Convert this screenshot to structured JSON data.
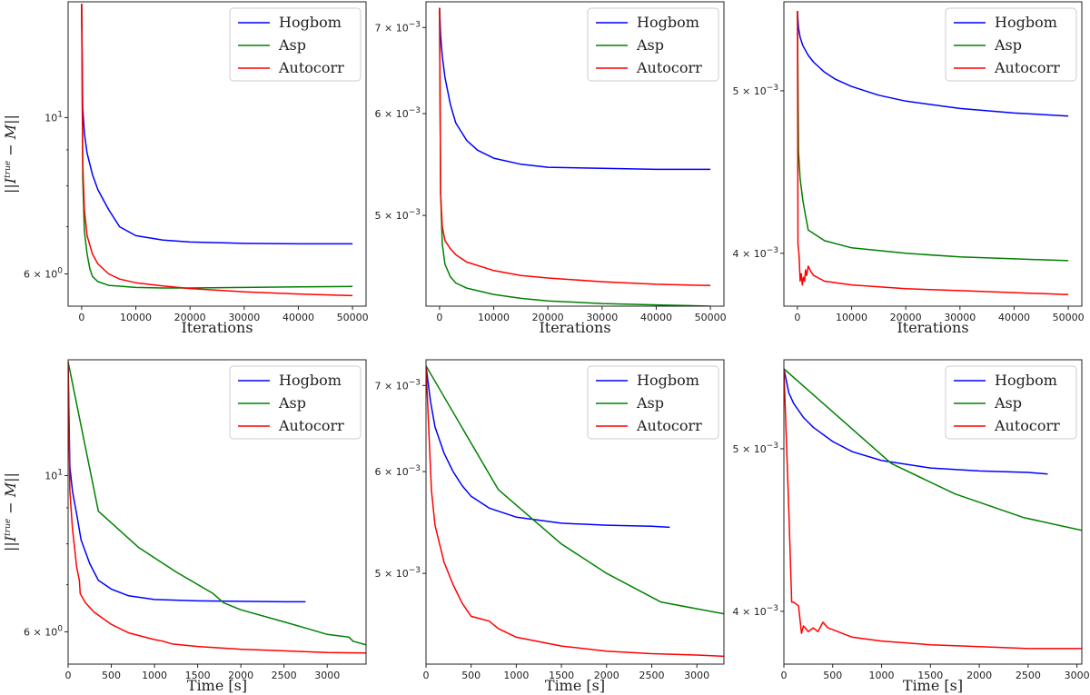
{
  "colors": {
    "Hogbom": "#0000ff",
    "Asp": "#008000",
    "Autocorr": "#ff0000",
    "axes": "#222222",
    "legend_border": "#cccccc"
  },
  "ylabel_text": {
    "base": "||I",
    "sup": "true",
    "rest": " − M||"
  },
  "chart_data": [
    {
      "type": "line",
      "yscale": "log",
      "xlabel": "Iterations",
      "ylabel": "||I^true − M||",
      "xlim": [
        -2500,
        52500
      ],
      "ylim": [
        5.4,
        14.6
      ],
      "xticks": [
        0,
        10000,
        20000,
        30000,
        40000,
        50000
      ],
      "yticks": [
        {
          "v": 10,
          "t": "10",
          "s": "1"
        },
        {
          "v": 6,
          "t": "6 × 10",
          "s": "0"
        }
      ],
      "minor_yticks": [
        7,
        8,
        9
      ],
      "legend": [
        "Hogbom",
        "Asp",
        "Autocorr"
      ],
      "legend_loc": "top-right",
      "series": [
        {
          "name": "Hogbom",
          "x": [
            0,
            200,
            500,
            1000,
            2000,
            3000,
            5000,
            7000,
            10000,
            15000,
            20000,
            30000,
            40000,
            50000
          ],
          "y": [
            14.5,
            10.3,
            9.5,
            8.9,
            8.3,
            7.9,
            7.4,
            7.0,
            6.8,
            6.7,
            6.66,
            6.63,
            6.62,
            6.62
          ]
        },
        {
          "name": "Asp",
          "x": [
            0,
            200,
            500,
            1000,
            1500,
            2000,
            3000,
            5000,
            10000,
            15000,
            20000,
            30000,
            40000,
            50000
          ],
          "y": [
            14.5,
            8.2,
            6.9,
            6.4,
            6.1,
            5.95,
            5.85,
            5.78,
            5.74,
            5.73,
            5.73,
            5.74,
            5.75,
            5.76
          ]
        },
        {
          "name": "Autocorr",
          "x": [
            0,
            200,
            500,
            1000,
            2000,
            3000,
            5000,
            7000,
            10000,
            15000,
            20000,
            30000,
            40000,
            50000
          ],
          "y": [
            14.5,
            8.6,
            7.4,
            6.8,
            6.4,
            6.2,
            6.0,
            5.9,
            5.83,
            5.77,
            5.72,
            5.66,
            5.62,
            5.59
          ]
        }
      ]
    },
    {
      "type": "line",
      "yscale": "log",
      "xlabel": "Iterations",
      "ylabel": "",
      "xlim": [
        -2500,
        52500
      ],
      "ylim": [
        0.00425,
        0.00733
      ],
      "xticks": [
        0,
        10000,
        20000,
        30000,
        40000,
        50000
      ],
      "yticks": [
        {
          "v": 0.007,
          "t": "7 × 10",
          "s": "−3"
        },
        {
          "v": 0.006,
          "t": "6 × 10",
          "s": "−3"
        },
        {
          "v": 0.005,
          "t": "5 × 10",
          "s": "−3"
        }
      ],
      "minor_yticks": [],
      "legend": [
        "Hogbom",
        "Asp",
        "Autocorr"
      ],
      "legend_loc": "top-right",
      "series": [
        {
          "name": "Hogbom",
          "x": [
            0,
            200,
            500,
            1000,
            2000,
            3000,
            5000,
            7000,
            10000,
            15000,
            20000,
            30000,
            40000,
            50000
          ],
          "y": [
            0.00725,
            0.0069,
            0.00665,
            0.0064,
            0.0061,
            0.0059,
            0.00572,
            0.00562,
            0.00554,
            0.00548,
            0.00545,
            0.00544,
            0.00543,
            0.00543
          ]
        },
        {
          "name": "Asp",
          "x": [
            0,
            200,
            500,
            1000,
            2000,
            3000,
            5000,
            10000,
            15000,
            20000,
            30000,
            40000,
            50000
          ],
          "y": [
            0.00725,
            0.0052,
            0.00475,
            0.00458,
            0.00448,
            0.00443,
            0.00439,
            0.00434,
            0.00431,
            0.00429,
            0.00427,
            0.00426,
            0.00425
          ]
        },
        {
          "name": "Autocorr",
          "x": [
            0,
            200,
            500,
            1000,
            2000,
            3000,
            5000,
            10000,
            15000,
            20000,
            30000,
            40000,
            50000
          ],
          "y": [
            0.00725,
            0.0052,
            0.0049,
            0.00478,
            0.00471,
            0.00466,
            0.0046,
            0.00453,
            0.00449,
            0.00447,
            0.00444,
            0.00442,
            0.00441
          ]
        }
      ]
    },
    {
      "type": "line",
      "yscale": "log",
      "xlabel": "Iterations",
      "ylabel": "",
      "xlim": [
        -2500,
        52500
      ],
      "ylim": [
        0.00372,
        0.00565
      ],
      "xticks": [
        0,
        10000,
        20000,
        30000,
        40000,
        50000
      ],
      "yticks": [
        {
          "v": 0.005,
          "t": "5 × 10",
          "s": "−3"
        },
        {
          "v": 0.004,
          "t": "4 × 10",
          "s": "−3"
        }
      ],
      "minor_yticks": [],
      "legend": [
        "Hogbom",
        "Asp",
        "Autocorr"
      ],
      "legend_loc": "top-right",
      "series": [
        {
          "name": "Hogbom",
          "x": [
            0,
            200,
            500,
            1000,
            2000,
            3000,
            5000,
            7000,
            10000,
            15000,
            20000,
            30000,
            40000,
            50000
          ],
          "y": [
            0.00558,
            0.00545,
            0.00538,
            0.00532,
            0.00525,
            0.0052,
            0.00513,
            0.00508,
            0.00503,
            0.00497,
            0.00493,
            0.00488,
            0.00485,
            0.00483
          ]
        },
        {
          "name": "Asp",
          "x": [
            0,
            200,
            500,
            1000,
            1500,
            2000,
            3000,
            5000,
            10000,
            20000,
            30000,
            40000,
            50000
          ],
          "y": [
            0.00558,
            0.0046,
            0.00443,
            0.0043,
            0.00421,
            0.00413,
            0.00411,
            0.00407,
            0.00403,
            0.004,
            0.00398,
            0.00397,
            0.00396
          ]
        },
        {
          "name": "Autocorr",
          "x": [
            0,
            100,
            300,
            500,
            700,
            900,
            1100,
            1300,
            1500,
            1700,
            2000,
            2500,
            3000,
            5000,
            10000,
            20000,
            30000,
            40000,
            50000
          ],
          "y": [
            0.00558,
            0.00405,
            0.00399,
            0.00385,
            0.00389,
            0.00383,
            0.00387,
            0.00385,
            0.00391,
            0.00388,
            0.00393,
            0.0039,
            0.00388,
            0.00385,
            0.00383,
            0.00381,
            0.0038,
            0.00379,
            0.00378
          ]
        }
      ]
    },
    {
      "type": "line",
      "yscale": "log",
      "xlabel": "Time [s]",
      "ylabel": "||I^true − M||",
      "xlim": [
        0,
        3450
      ],
      "ylim": [
        5.4,
        14.6
      ],
      "xticks": [
        0,
        500,
        1000,
        1500,
        2000,
        2500,
        3000
      ],
      "yticks": [
        {
          "v": 10,
          "t": "10",
          "s": "1"
        },
        {
          "v": 6,
          "t": "6 × 10",
          "s": "0"
        }
      ],
      "minor_yticks": [
        7,
        8,
        9
      ],
      "legend": [
        "Hogbom",
        "Asp",
        "Autocorr"
      ],
      "legend_loc": "top-right",
      "series": [
        {
          "name": "Hogbom",
          "x": [
            0,
            20,
            50,
            100,
            150,
            250,
            350,
            500,
            700,
            1000,
            1500,
            2000,
            2500,
            2750
          ],
          "y": [
            14.5,
            10.3,
            9.5,
            8.8,
            8.1,
            7.5,
            7.1,
            6.9,
            6.75,
            6.67,
            6.64,
            6.63,
            6.62,
            6.62
          ]
        },
        {
          "name": "Asp",
          "x": [
            0,
            350,
            820,
            1250,
            1680,
            1800,
            2000,
            2500,
            2800,
            3000,
            3250,
            3300,
            3450
          ],
          "y": [
            14.5,
            8.9,
            7.9,
            7.3,
            6.8,
            6.6,
            6.45,
            6.2,
            6.05,
            5.95,
            5.9,
            5.82,
            5.75
          ]
        },
        {
          "name": "Autocorr",
          "x": [
            0,
            20,
            50,
            100,
            130,
            140,
            200,
            300,
            500,
            700,
            1000,
            1100,
            1200,
            1500,
            2000,
            2500,
            3000,
            3450
          ],
          "y": [
            14.5,
            9.5,
            8.4,
            7.4,
            7.1,
            6.8,
            6.6,
            6.4,
            6.15,
            5.98,
            5.85,
            5.82,
            5.77,
            5.72,
            5.67,
            5.64,
            5.61,
            5.6
          ]
        }
      ]
    },
    {
      "type": "line",
      "yscale": "log",
      "xlabel": "Time [s]",
      "ylabel": "",
      "xlim": [
        0,
        3300
      ],
      "ylim": [
        0.00425,
        0.00733
      ],
      "xticks": [
        0,
        500,
        1000,
        1500,
        2000,
        2500,
        3000
      ],
      "yticks": [
        {
          "v": 0.007,
          "t": "7 × 10",
          "s": "−3"
        },
        {
          "v": 0.006,
          "t": "6 × 10",
          "s": "−3"
        },
        {
          "v": 0.005,
          "t": "5 × 10",
          "s": "−3"
        }
      ],
      "minor_yticks": [],
      "legend": [
        "Hogbom",
        "Asp",
        "Autocorr"
      ],
      "legend_loc": "top-right",
      "series": [
        {
          "name": "Hogbom",
          "x": [
            0,
            50,
            100,
            200,
            300,
            400,
            500,
            700,
            1000,
            1500,
            2000,
            2500,
            2700
          ],
          "y": [
            0.00725,
            0.0068,
            0.0065,
            0.0062,
            0.006,
            0.00585,
            0.00574,
            0.00562,
            0.00553,
            0.00547,
            0.00545,
            0.00544,
            0.00543
          ]
        },
        {
          "name": "Asp",
          "x": [
            0,
            800,
            1500,
            2000,
            2600,
            3300
          ],
          "y": [
            0.00725,
            0.00581,
            0.00527,
            0.005,
            0.00475,
            0.00465
          ]
        },
        {
          "name": "Autocorr",
          "x": [
            0,
            60,
            100,
            200,
            300,
            400,
            500,
            600,
            700,
            800,
            1000,
            1500,
            2000,
            2500,
            3000,
            3300
          ],
          "y": [
            0.00725,
            0.0058,
            0.00545,
            0.0051,
            0.0049,
            0.00474,
            0.00463,
            0.00461,
            0.00459,
            0.00453,
            0.00446,
            0.00439,
            0.00435,
            0.00433,
            0.00432,
            0.00431
          ]
        }
      ]
    },
    {
      "type": "line",
      "yscale": "log",
      "xlabel": "Time [s]",
      "ylabel": "",
      "xlim": [
        0,
        3050
      ],
      "ylim": [
        0.00372,
        0.00565
      ],
      "xticks": [
        0,
        500,
        1000,
        1500,
        2000,
        2500,
        3000
      ],
      "yticks": [
        {
          "v": 0.005,
          "t": "5 × 10",
          "s": "−3"
        },
        {
          "v": 0.004,
          "t": "4 × 10",
          "s": "−3"
        }
      ],
      "minor_yticks": [],
      "legend": [
        "Hogbom",
        "Asp",
        "Autocorr"
      ],
      "legend_loc": "top-right",
      "series": [
        {
          "name": "Hogbom",
          "x": [
            0,
            50,
            100,
            200,
            300,
            500,
            700,
            1000,
            1500,
            2000,
            2500,
            2700
          ],
          "y": [
            0.00558,
            0.0054,
            0.00532,
            0.00522,
            0.00515,
            0.00505,
            0.00498,
            0.00492,
            0.00487,
            0.00485,
            0.00484,
            0.00483
          ]
        },
        {
          "name": "Asp",
          "x": [
            0,
            1100,
            1750,
            2450,
            3050
          ],
          "y": [
            0.00558,
            0.0049,
            0.0047,
            0.00455,
            0.00447
          ]
        },
        {
          "name": "Autocorr",
          "x": [
            0,
            50,
            80,
            100,
            150,
            180,
            200,
            250,
            300,
            350,
            400,
            450,
            500,
            700,
            1000,
            1500,
            2000,
            2500,
            3050
          ],
          "y": [
            0.00558,
            0.0046,
            0.00405,
            0.00405,
            0.00403,
            0.00388,
            0.00392,
            0.00389,
            0.00391,
            0.00389,
            0.00394,
            0.00391,
            0.0039,
            0.00386,
            0.00384,
            0.00382,
            0.00381,
            0.0038,
            0.0038
          ]
        }
      ]
    }
  ]
}
